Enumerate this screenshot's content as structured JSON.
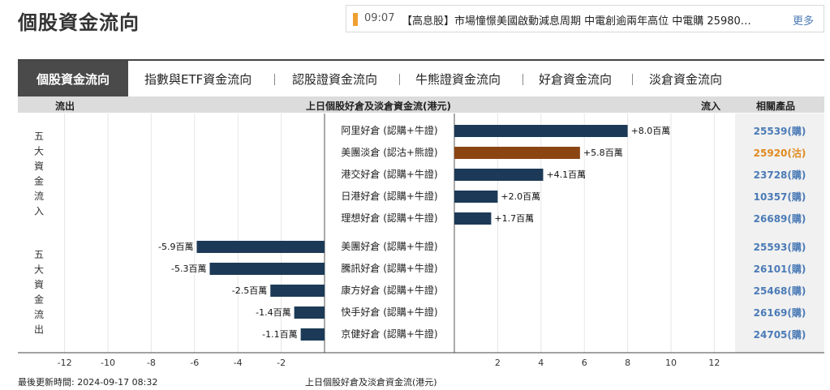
{
  "page": {
    "title": "個股資金流向"
  },
  "news": {
    "time": "09:07",
    "text": "【高息股】市場憧憬美國啟動減息周期 中電創逾兩年高位 中電購 25980…",
    "more": "更多"
  },
  "tabs": [
    {
      "label": "個股資金流向",
      "active": true
    },
    {
      "label": "指數與ETF資金流向",
      "active": false
    },
    {
      "label": "認股證資金流向",
      "active": false
    },
    {
      "label": "牛熊證資金流向",
      "active": false
    },
    {
      "label": "好倉資金流向",
      "active": false
    },
    {
      "label": "淡倉資金流向",
      "active": false
    }
  ],
  "table_header": {
    "outflow": "流出",
    "title": "上日個股好倉及淡倉資金流(港元)",
    "inflow": "流入",
    "related": "相關產品"
  },
  "group_labels": {
    "inflow": [
      "五",
      "大",
      "資",
      "金",
      "流",
      "入"
    ],
    "outflow": [
      "五",
      "大",
      "資",
      "金",
      "流",
      "出"
    ]
  },
  "colors": {
    "bar_default": "#1c3a57",
    "bar_short": "#8b4513",
    "link": "#4b7bb6",
    "link_short": "#e08a1e"
  },
  "chart_data": {
    "type": "bar",
    "orientation": "horizontal",
    "title": "上日個股好倉及淡倉資金流(港元)",
    "xlim": [
      -14,
      14
    ],
    "xticks": [
      -12,
      -10,
      -8,
      -6,
      -4,
      -2,
      2,
      4,
      6,
      8,
      10,
      12
    ],
    "rows": [
      {
        "label": "阿里好倉 (認購+牛證)",
        "value": 8.0,
        "value_label": "+8.0百萬",
        "product": "25539(購)",
        "kind": "long"
      },
      {
        "label": "美團淡倉 (認沽+熊證)",
        "value": 5.8,
        "value_label": "+5.8百萬",
        "product": "25920(沽)",
        "kind": "short"
      },
      {
        "label": "港交好倉 (認購+牛證)",
        "value": 4.1,
        "value_label": "+4.1百萬",
        "product": "23728(購)",
        "kind": "long"
      },
      {
        "label": "日港好倉 (認購+牛證)",
        "value": 2.0,
        "value_label": "+2.0百萬",
        "product": "10357(購)",
        "kind": "long"
      },
      {
        "label": "理想好倉 (認購+牛證)",
        "value": 1.7,
        "value_label": "+1.7百萬",
        "product": "26689(購)",
        "kind": "long"
      },
      {
        "label": "美團好倉 (認購+牛證)",
        "value": -5.9,
        "value_label": "-5.9百萬",
        "product": "25593(購)",
        "kind": "long"
      },
      {
        "label": "騰訊好倉 (認購+牛證)",
        "value": -5.3,
        "value_label": "-5.3百萬",
        "product": "26101(購)",
        "kind": "long"
      },
      {
        "label": "康方好倉 (認購+牛證)",
        "value": -2.5,
        "value_label": "-2.5百萬",
        "product": "25468(購)",
        "kind": "long"
      },
      {
        "label": "快手好倉 (認購+牛證)",
        "value": -1.4,
        "value_label": "-1.4百萬",
        "product": "26169(購)",
        "kind": "long"
      },
      {
        "label": "京健好倉 (認購+牛證)",
        "value": -1.1,
        "value_label": "-1.1百萬",
        "product": "24705(購)",
        "kind": "long"
      }
    ]
  },
  "footer": {
    "updated": "最後更新時間: 2024-09-17 08:32",
    "caption": "上日個股好倉及淡倉資金流(港元)"
  }
}
